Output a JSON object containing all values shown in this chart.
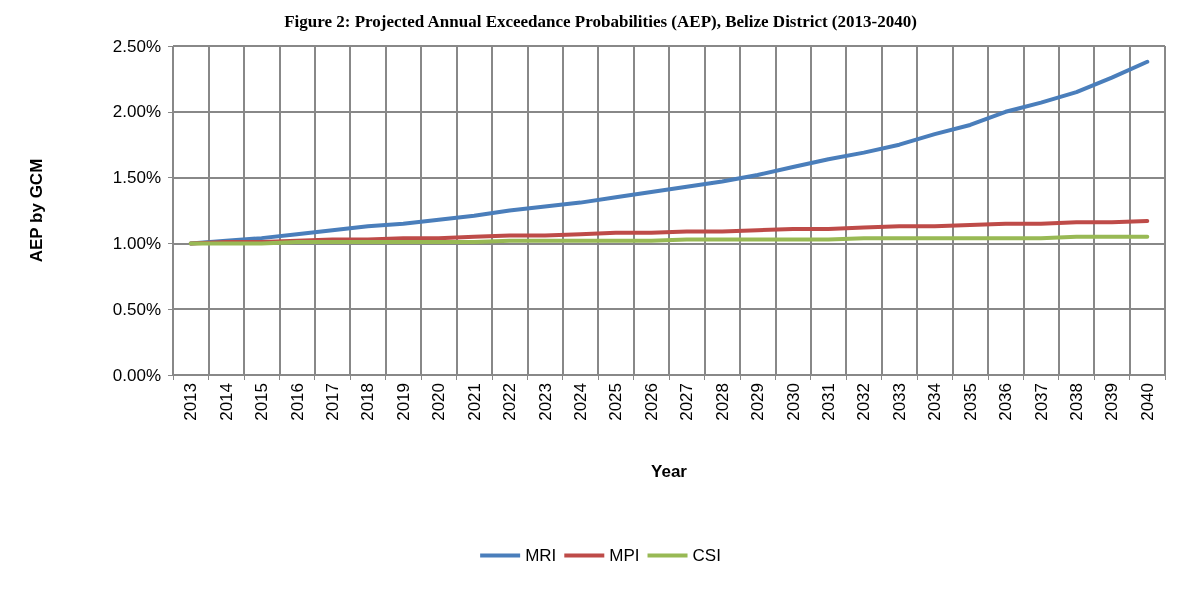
{
  "chart_data": {
    "type": "line",
    "title": "Figure 2: Projected Annual Exceedance Probabilities (AEP), Belize District (2013-2040)",
    "xlabel": "Year",
    "ylabel": "AEP by GCM",
    "categories": [
      "2013",
      "2014",
      "2015",
      "2016",
      "2017",
      "2018",
      "2019",
      "2020",
      "2021",
      "2022",
      "2023",
      "2024",
      "2025",
      "2026",
      "2027",
      "2028",
      "2029",
      "2030",
      "2031",
      "2032",
      "2033",
      "2034",
      "2035",
      "2036",
      "2037",
      "2038",
      "2039",
      "2040"
    ],
    "series": [
      {
        "name": "MRI",
        "color": "#4a7ebb",
        "values": [
          1.0,
          1.02,
          1.04,
          1.07,
          1.1,
          1.13,
          1.15,
          1.18,
          1.21,
          1.25,
          1.28,
          1.31,
          1.35,
          1.39,
          1.43,
          1.47,
          1.52,
          1.58,
          1.64,
          1.69,
          1.75,
          1.83,
          1.9,
          2.0,
          2.07,
          2.15,
          2.26,
          2.38
        ]
      },
      {
        "name": "MPI",
        "color": "#be4b48",
        "values": [
          1.0,
          1.01,
          1.01,
          1.02,
          1.03,
          1.03,
          1.04,
          1.04,
          1.05,
          1.06,
          1.06,
          1.07,
          1.08,
          1.08,
          1.09,
          1.09,
          1.1,
          1.11,
          1.11,
          1.12,
          1.13,
          1.13,
          1.14,
          1.15,
          1.15,
          1.16,
          1.16,
          1.17
        ]
      },
      {
        "name": "CSI",
        "color": "#98b954",
        "values": [
          1.0,
          1.0,
          1.0,
          1.01,
          1.01,
          1.01,
          1.01,
          1.01,
          1.01,
          1.02,
          1.02,
          1.02,
          1.02,
          1.02,
          1.03,
          1.03,
          1.03,
          1.03,
          1.03,
          1.04,
          1.04,
          1.04,
          1.04,
          1.04,
          1.04,
          1.05,
          1.05,
          1.05
        ]
      }
    ],
    "ylim": [
      0,
      2.5
    ],
    "yticks": [
      {
        "value": 0,
        "label": "0.00%"
      },
      {
        "value": 0.5,
        "label": "0.50%"
      },
      {
        "value": 1,
        "label": "1.00%"
      },
      {
        "value": 1.5,
        "label": "1.50%"
      },
      {
        "value": 2,
        "label": "2.00%"
      },
      {
        "value": 2.5,
        "label": "2.50%"
      }
    ],
    "grid": true,
    "legend": "bottom",
    "marker": "none",
    "line_style": "solid"
  }
}
